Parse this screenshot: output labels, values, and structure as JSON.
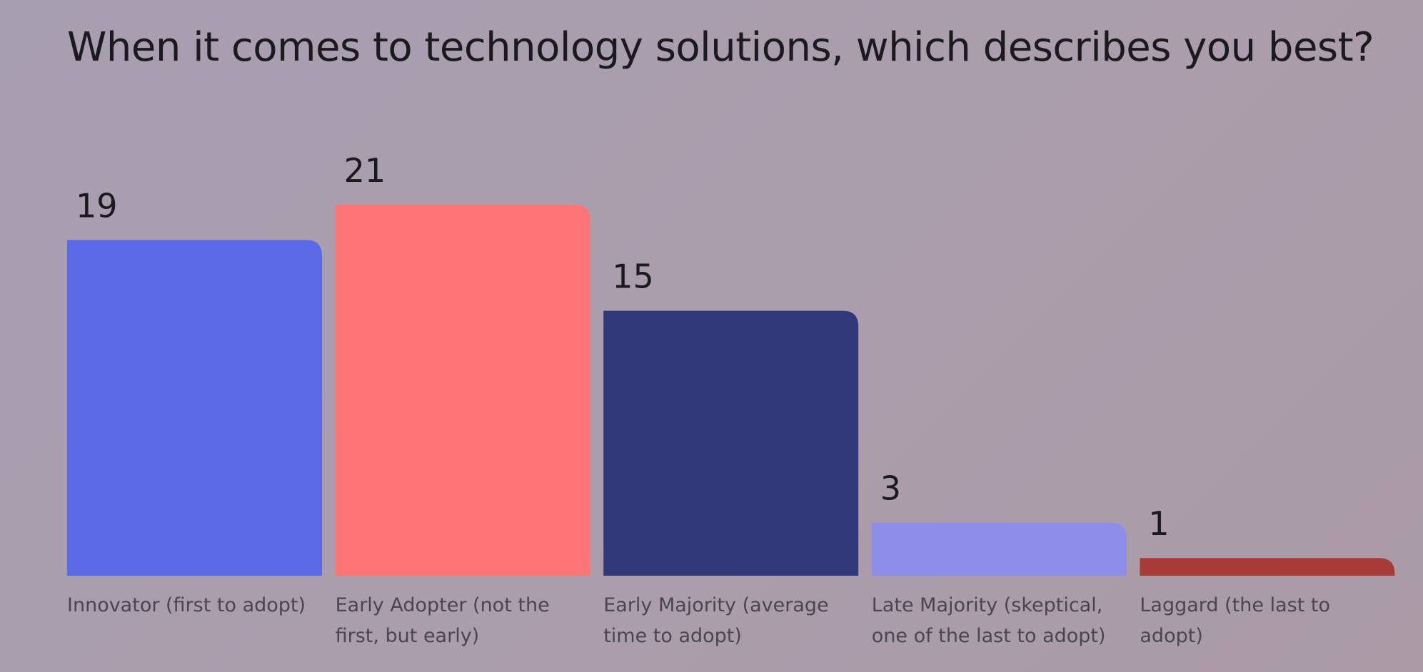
{
  "chart_data": {
    "type": "bar",
    "title": "When it comes to technology solutions, which describes you best?",
    "categories": [
      "Innovator (first to adopt)",
      "Early Adopter (not the first, but early)",
      "Early Majority (average time to adopt)",
      "Late Majority (skeptical, one of the last to adopt)",
      "Laggard (the last to adopt)"
    ],
    "values": [
      19,
      21,
      15,
      3,
      1
    ],
    "colors": [
      "#5a6ae6",
      "#ff7575",
      "#32397a",
      "#8f8dea",
      "#a83a38"
    ]
  }
}
